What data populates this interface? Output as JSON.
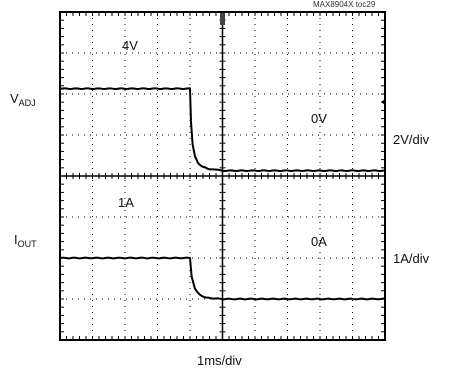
{
  "figure_tag": "MAX8904X toc29",
  "trace1_label_main": "V",
  "trace1_label_sub": "ADJ",
  "trace2_label_main": "I",
  "trace2_label_sub": "OUT",
  "chart_data": {
    "type": "line",
    "title": "",
    "time_scale": "1ms/div",
    "divisions": {
      "x": 10,
      "y": 8
    },
    "series": [
      {
        "name": "VADJ",
        "scale": "2V/div",
        "annotations": [
          "4V",
          "0V"
        ],
        "x": [
          0,
          4.0,
          4.03,
          4.08,
          4.15,
          4.25,
          4.4,
          4.6,
          5.0,
          10.0
        ],
        "y": [
          4.0,
          4.0,
          2.4,
          1.3,
          0.7,
          0.35,
          0.18,
          0.08,
          0.0,
          0.0
        ]
      },
      {
        "name": "IOUT",
        "scale": "1A/div",
        "annotations": [
          "1A",
          "0A"
        ],
        "x": [
          0,
          4.0,
          4.05,
          4.15,
          4.3,
          4.5,
          5.0,
          10.0
        ],
        "y": [
          1.0,
          1.0,
          0.55,
          0.25,
          0.1,
          0.03,
          0.0,
          0.0
        ]
      }
    ]
  }
}
